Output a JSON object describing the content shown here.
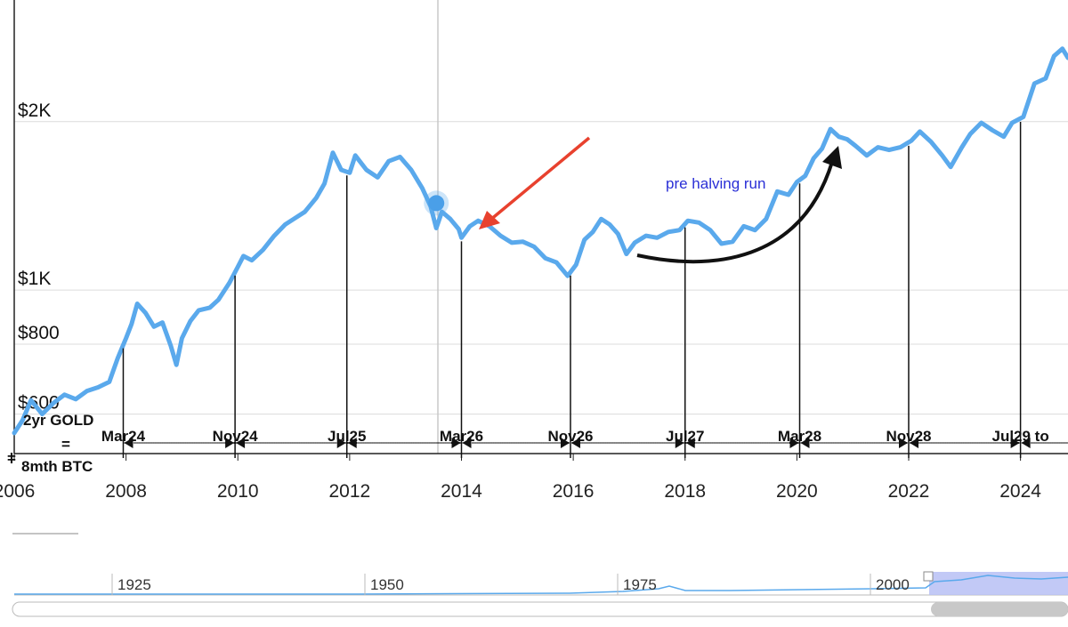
{
  "chart_data": {
    "type": "line",
    "title": "",
    "xlabel": "",
    "ylabel": "",
    "x_ticks": [
      "2006",
      "2008",
      "2010",
      "2012",
      "2014",
      "2016",
      "2018",
      "2020",
      "2022",
      "2024"
    ],
    "y_ticks": [
      {
        "label": "$600",
        "value": 600
      },
      {
        "label": "$800",
        "value": 800
      },
      {
        "label": "$1K",
        "value": 1000
      },
      {
        "label": "$2K",
        "value": 2000
      }
    ],
    "y_scale": "log",
    "xlim": [
      2006.0,
      2024.85
    ],
    "ylim": [
      510,
      3300
    ],
    "grid": true,
    "series": [
      {
        "color": "#5aa9ec",
        "points": [
          [
            2006.0,
            555
          ],
          [
            2006.15,
            585
          ],
          [
            2006.3,
            635
          ],
          [
            2006.5,
            600
          ],
          [
            2006.7,
            628
          ],
          [
            2006.9,
            650
          ],
          [
            2007.1,
            638
          ],
          [
            2007.3,
            660
          ],
          [
            2007.5,
            670
          ],
          [
            2007.7,
            685
          ],
          [
            2007.85,
            755
          ],
          [
            2008.0,
            820
          ],
          [
            2008.1,
            870
          ],
          [
            2008.2,
            945
          ],
          [
            2008.35,
            910
          ],
          [
            2008.5,
            860
          ],
          [
            2008.65,
            875
          ],
          [
            2008.8,
            795
          ],
          [
            2008.9,
            735
          ],
          [
            2009.0,
            820
          ],
          [
            2009.15,
            880
          ],
          [
            2009.3,
            920
          ],
          [
            2009.5,
            930
          ],
          [
            2009.65,
            960
          ],
          [
            2009.85,
            1030
          ],
          [
            2010.0,
            1100
          ],
          [
            2010.1,
            1150
          ],
          [
            2010.25,
            1130
          ],
          [
            2010.45,
            1180
          ],
          [
            2010.65,
            1250
          ],
          [
            2010.85,
            1310
          ],
          [
            2011.0,
            1340
          ],
          [
            2011.2,
            1380
          ],
          [
            2011.4,
            1460
          ],
          [
            2011.55,
            1550
          ],
          [
            2011.7,
            1760
          ],
          [
            2011.85,
            1640
          ],
          [
            2012.0,
            1620
          ],
          [
            2012.1,
            1740
          ],
          [
            2012.3,
            1640
          ],
          [
            2012.5,
            1590
          ],
          [
            2012.7,
            1700
          ],
          [
            2012.9,
            1730
          ],
          [
            2013.1,
            1640
          ],
          [
            2013.3,
            1520
          ],
          [
            2013.45,
            1410
          ],
          [
            2013.55,
            1290
          ],
          [
            2013.65,
            1380
          ],
          [
            2013.8,
            1340
          ],
          [
            2013.95,
            1285
          ],
          [
            2014.0,
            1240
          ],
          [
            2014.15,
            1300
          ],
          [
            2014.3,
            1330
          ],
          [
            2014.5,
            1300
          ],
          [
            2014.7,
            1250
          ],
          [
            2014.9,
            1215
          ],
          [
            2015.1,
            1220
          ],
          [
            2015.3,
            1195
          ],
          [
            2015.5,
            1140
          ],
          [
            2015.7,
            1120
          ],
          [
            2015.9,
            1060
          ],
          [
            2016.05,
            1110
          ],
          [
            2016.2,
            1230
          ],
          [
            2016.35,
            1270
          ],
          [
            2016.5,
            1340
          ],
          [
            2016.65,
            1310
          ],
          [
            2016.8,
            1260
          ],
          [
            2016.95,
            1160
          ],
          [
            2017.1,
            1215
          ],
          [
            2017.3,
            1250
          ],
          [
            2017.5,
            1240
          ],
          [
            2017.7,
            1270
          ],
          [
            2017.9,
            1280
          ],
          [
            2018.05,
            1330
          ],
          [
            2018.25,
            1320
          ],
          [
            2018.45,
            1280
          ],
          [
            2018.65,
            1210
          ],
          [
            2018.85,
            1220
          ],
          [
            2019.05,
            1300
          ],
          [
            2019.25,
            1280
          ],
          [
            2019.45,
            1340
          ],
          [
            2019.65,
            1500
          ],
          [
            2019.85,
            1480
          ],
          [
            2020.0,
            1560
          ],
          [
            2020.15,
            1600
          ],
          [
            2020.3,
            1720
          ],
          [
            2020.45,
            1790
          ],
          [
            2020.6,
            1940
          ],
          [
            2020.75,
            1880
          ],
          [
            2020.9,
            1860
          ],
          [
            2021.05,
            1810
          ],
          [
            2021.25,
            1740
          ],
          [
            2021.45,
            1800
          ],
          [
            2021.65,
            1780
          ],
          [
            2021.85,
            1800
          ],
          [
            2022.05,
            1850
          ],
          [
            2022.2,
            1920
          ],
          [
            2022.4,
            1840
          ],
          [
            2022.6,
            1740
          ],
          [
            2022.75,
            1660
          ],
          [
            2022.95,
            1800
          ],
          [
            2023.1,
            1900
          ],
          [
            2023.3,
            1990
          ],
          [
            2023.5,
            1930
          ],
          [
            2023.7,
            1880
          ],
          [
            2023.85,
            1990
          ],
          [
            2024.05,
            2040
          ],
          [
            2024.25,
            2340
          ],
          [
            2024.45,
            2390
          ],
          [
            2024.6,
            2620
          ],
          [
            2024.75,
            2700
          ],
          [
            2024.85,
            2600
          ]
        ]
      }
    ],
    "annotations": {
      "markers": [
        {
          "label": "Mar24",
          "x": 2007.95
        },
        {
          "label": "Nov24",
          "x": 2009.95
        },
        {
          "label": "Jul25",
          "x": 2011.95
        },
        {
          "label": "Mar26",
          "x": 2014.0
        },
        {
          "label": "Nov26",
          "x": 2015.95
        },
        {
          "label": "Jul27",
          "x": 2018.0
        },
        {
          "label": "Mar28",
          "x": 2020.05
        },
        {
          "label": "Nov28",
          "x": 2022.0
        },
        {
          "label": "Jul29 to",
          "x": 2024.0
        }
      ],
      "side_note": [
        "2yr GOLD",
        "=",
        "8mth BTC"
      ],
      "callout": "pre halving run",
      "highlight_point": {
        "x": 2013.55,
        "y": 1430
      }
    }
  },
  "navigator": {
    "labels": [
      "1925",
      "1950",
      "1975",
      "2000"
    ]
  }
}
